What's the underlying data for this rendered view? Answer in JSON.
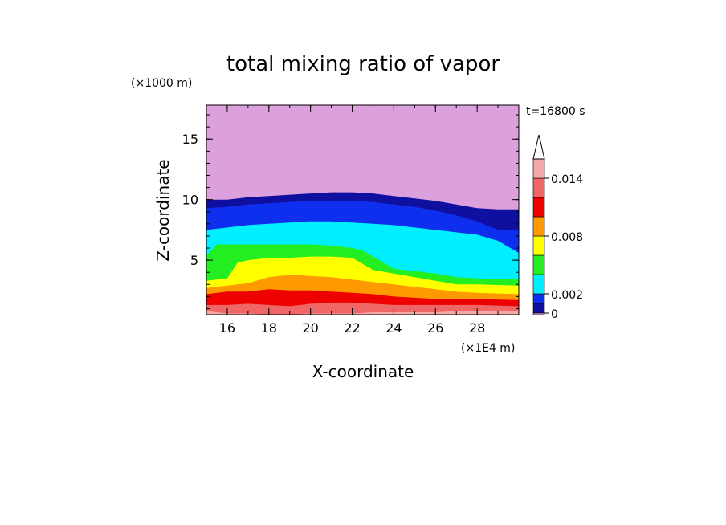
{
  "chart_data": {
    "type": "contour",
    "title": "total mixing ratio of vapor",
    "xlabel": "X-coordinate",
    "ylabel": "Z-coordinate",
    "x_unit": "(×1E4 m)",
    "y_unit": "(×1000 m)",
    "time_label": "t=16800 s",
    "xlim": [
      15,
      30
    ],
    "ylim": [
      0.5,
      17.8
    ],
    "x_ticks": [
      16,
      18,
      20,
      22,
      24,
      26,
      28
    ],
    "y_ticks": [
      5,
      10,
      15
    ],
    "colorbar": {
      "levels": [
        0,
        0.001,
        0.002,
        0.004,
        0.006,
        0.008,
        0.01,
        0.012,
        0.014,
        0.016
      ],
      "tick_labels": [
        {
          "value": 0,
          "label": "0"
        },
        {
          "value": 0.002,
          "label": "0.002"
        },
        {
          "value": 0.008,
          "label": "0.008"
        },
        {
          "value": 0.014,
          "label": "0.014"
        }
      ],
      "colors": [
        "#1010a0",
        "#0f2fee",
        "#00eeff",
        "#22ee22",
        "#ffff00",
        "#ff9900",
        "#ee0000",
        "#ee6666",
        "#f4a8a8"
      ],
      "background_color": "#dca0dc",
      "extend": "max"
    },
    "layer_tops": [
      {
        "color": "#1010a0",
        "z": [
          [
            15,
            10.0
          ],
          [
            16,
            10.0
          ],
          [
            17,
            10.2
          ],
          [
            18,
            10.3
          ],
          [
            19,
            10.4
          ],
          [
            20,
            10.5
          ],
          [
            21,
            10.6
          ],
          [
            22,
            10.6
          ],
          [
            23,
            10.5
          ],
          [
            24,
            10.3
          ],
          [
            25,
            10.1
          ],
          [
            26,
            9.9
          ],
          [
            27,
            9.6
          ],
          [
            28,
            9.3
          ],
          [
            29,
            9.2
          ],
          [
            30,
            9.2
          ]
        ]
      },
      {
        "color": "#0f2fee",
        "z": [
          [
            15,
            9.3
          ],
          [
            16,
            9.4
          ],
          [
            17,
            9.6
          ],
          [
            18,
            9.7
          ],
          [
            19,
            9.8
          ],
          [
            20,
            9.9
          ],
          [
            21,
            9.9
          ],
          [
            22,
            9.9
          ],
          [
            23,
            9.8
          ],
          [
            24,
            9.6
          ],
          [
            25,
            9.4
          ],
          [
            26,
            9.1
          ],
          [
            27,
            8.7
          ],
          [
            28,
            8.2
          ],
          [
            29,
            7.5
          ],
          [
            30,
            7.5
          ]
        ]
      },
      {
        "color": "#00eeff",
        "z": [
          [
            15,
            7.5
          ],
          [
            16,
            7.7
          ],
          [
            17,
            7.9
          ],
          [
            18,
            8.0
          ],
          [
            19,
            8.1
          ],
          [
            20,
            8.2
          ],
          [
            21,
            8.2
          ],
          [
            22,
            8.1
          ],
          [
            23,
            8.0
          ],
          [
            24,
            7.9
          ],
          [
            25,
            7.7
          ],
          [
            26,
            7.5
          ],
          [
            27,
            7.3
          ],
          [
            28,
            7.1
          ],
          [
            29,
            6.6
          ],
          [
            30,
            5.6
          ]
        ]
      },
      {
        "color": "#22ee22",
        "z": [
          [
            15,
            5.4
          ],
          [
            15.5,
            6.3
          ],
          [
            16,
            6.3
          ],
          [
            18,
            6.3
          ],
          [
            20,
            6.3
          ],
          [
            21,
            6.2
          ],
          [
            22,
            6.0
          ],
          [
            22.5,
            5.8
          ],
          [
            23,
            5.3
          ],
          [
            24,
            4.3
          ],
          [
            25,
            4.1
          ],
          [
            26,
            3.9
          ],
          [
            27,
            3.6
          ],
          [
            28,
            3.5
          ],
          [
            30,
            3.4
          ]
        ]
      },
      {
        "color": "#ffff00",
        "z": [
          [
            15,
            3.3
          ],
          [
            16,
            3.5
          ],
          [
            16.5,
            4.8
          ],
          [
            17,
            5.0
          ],
          [
            18,
            5.2
          ],
          [
            19,
            5.2
          ],
          [
            20,
            5.3
          ],
          [
            21,
            5.3
          ],
          [
            22,
            5.2
          ],
          [
            23,
            4.2
          ],
          [
            24,
            3.9
          ],
          [
            25,
            3.6
          ],
          [
            26,
            3.3
          ],
          [
            27,
            3.0
          ],
          [
            28,
            3.0
          ],
          [
            30,
            2.9
          ]
        ]
      },
      {
        "color": "#ff9900",
        "z": [
          [
            15,
            2.7
          ],
          [
            16,
            2.9
          ],
          [
            17,
            3.1
          ],
          [
            18,
            3.6
          ],
          [
            19,
            3.8
          ],
          [
            20,
            3.7
          ],
          [
            21,
            3.6
          ],
          [
            22,
            3.4
          ],
          [
            23,
            3.2
          ],
          [
            24,
            3.0
          ],
          [
            25,
            2.8
          ],
          [
            26,
            2.6
          ],
          [
            27,
            2.4
          ],
          [
            28,
            2.3
          ],
          [
            30,
            2.2
          ]
        ]
      },
      {
        "color": "#ee0000",
        "z": [
          [
            15,
            2.2
          ],
          [
            16,
            2.4
          ],
          [
            17,
            2.4
          ],
          [
            18,
            2.6
          ],
          [
            19,
            2.5
          ],
          [
            20,
            2.5
          ],
          [
            21,
            2.4
          ],
          [
            22,
            2.3
          ],
          [
            23,
            2.2
          ],
          [
            24,
            2.0
          ],
          [
            25,
            1.9
          ],
          [
            26,
            1.8
          ],
          [
            27,
            1.8
          ],
          [
            28,
            1.8
          ],
          [
            30,
            1.7
          ]
        ]
      },
      {
        "color": "#ee6666",
        "z": [
          [
            15,
            1.3
          ],
          [
            16,
            1.3
          ],
          [
            17,
            1.4
          ],
          [
            18,
            1.3
          ],
          [
            19,
            1.2
          ],
          [
            20,
            1.4
          ],
          [
            21,
            1.5
          ],
          [
            22,
            1.5
          ],
          [
            23,
            1.4
          ],
          [
            24,
            1.3
          ],
          [
            25,
            1.3
          ],
          [
            26,
            1.3
          ],
          [
            27,
            1.3
          ],
          [
            28,
            1.3
          ],
          [
            30,
            1.2
          ]
        ]
      },
      {
        "color": "#f4a8a8",
        "z": [
          [
            15,
            0.8
          ],
          [
            16,
            0.6
          ],
          [
            17,
            0.6
          ],
          [
            18,
            0.5
          ],
          [
            19,
            0.5
          ],
          [
            20,
            0.6
          ],
          [
            21,
            0.6
          ],
          [
            22,
            0.6
          ],
          [
            23,
            0.7
          ],
          [
            24,
            0.7
          ],
          [
            25,
            0.7
          ],
          [
            26,
            0.7
          ],
          [
            27,
            0.8
          ],
          [
            28,
            0.8
          ],
          [
            30,
            0.8
          ]
        ]
      }
    ]
  }
}
